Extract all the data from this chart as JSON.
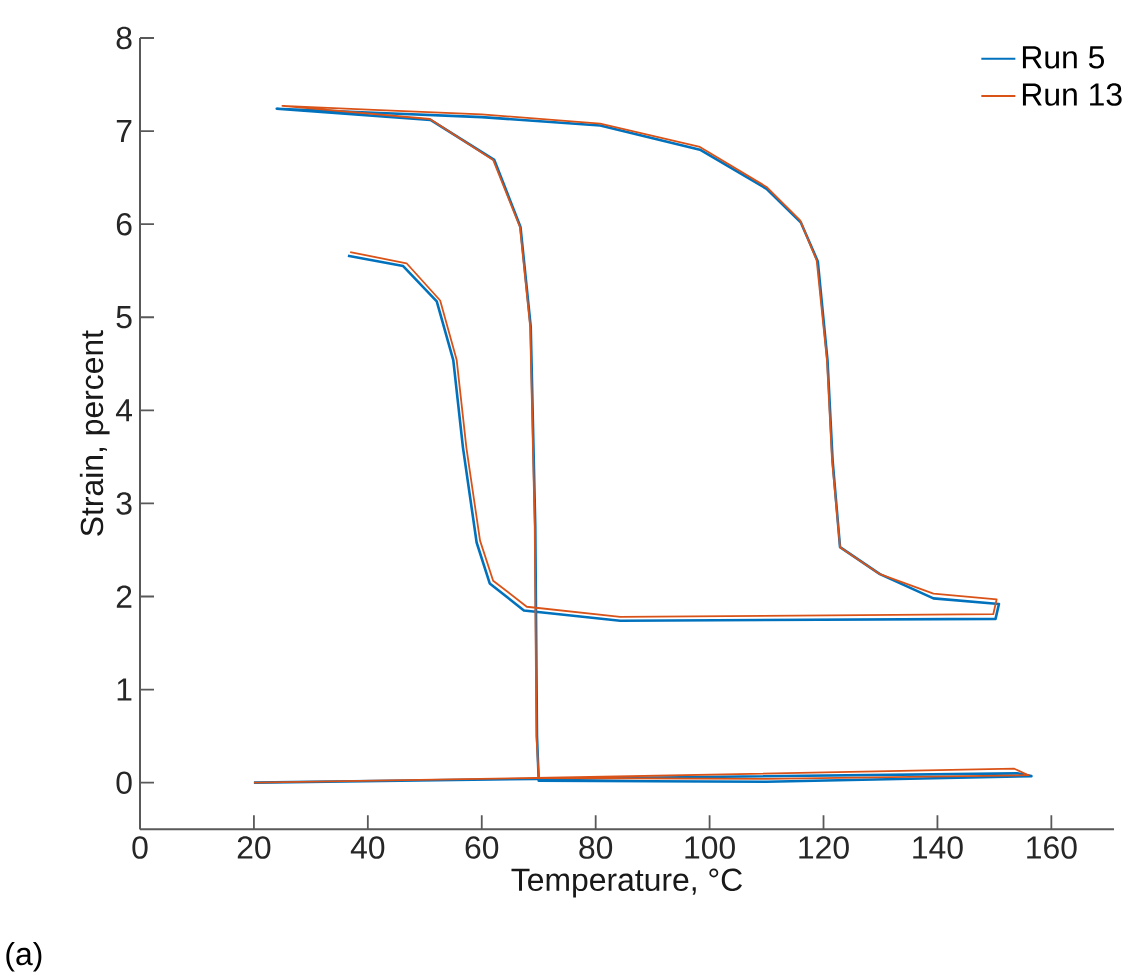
{
  "chart_data": {
    "type": "line",
    "xlabel": "Temperature, °C",
    "ylabel": "Strain, percent",
    "xlim": [
      0,
      171
    ],
    "ylim": [
      -0.5,
      8
    ],
    "xticks": [
      0,
      20,
      40,
      60,
      80,
      100,
      120,
      140,
      160
    ],
    "yticks": [
      0,
      1,
      2,
      3,
      4,
      5,
      6,
      7,
      8
    ],
    "legend": "top right",
    "annotations": [
      "(a)"
    ],
    "series": [
      {
        "name": "Run 5",
        "color": "#0072bd",
        "x": [
          20,
          69.5,
          154,
          156.5,
          110,
          70,
          69.7,
          69.4,
          68.6,
          66.8,
          62.2,
          51,
          24,
          40,
          60,
          80.8,
          98.3,
          110,
          116,
          119,
          120.7,
          121.6,
          122.9,
          129.9,
          139.3,
          150.8,
          150.2,
          84.3,
          67.4,
          61.4,
          59.1,
          56.7,
          55,
          52.1,
          46.2,
          36.5
        ],
        "values": [
          0,
          0.04,
          0.1,
          0.07,
          0.01,
          0.02,
          0.5,
          2.75,
          4.9,
          5.97,
          6.69,
          7.12,
          7.24,
          7.2,
          7.15,
          7.06,
          6.8,
          6.38,
          6.02,
          5.6,
          4.54,
          3.46,
          2.53,
          2.24,
          1.98,
          1.92,
          1.76,
          1.74,
          1.85,
          2.14,
          2.58,
          3.6,
          4.54,
          5.17,
          5.55,
          5.66
        ]
      },
      {
        "name": "Run 13",
        "color": "#d95319",
        "x": [
          20,
          69.5,
          153.5,
          156,
          110,
          70,
          69.6,
          69.3,
          68.5,
          66.7,
          62,
          50.9,
          25,
          40,
          60,
          80.8,
          98.3,
          110,
          115.9,
          118.8,
          120.6,
          121.5,
          122.9,
          129.9,
          139.3,
          150.4,
          149.8,
          84.3,
          67.9,
          62,
          59.7,
          57.3,
          55.6,
          52.7,
          46.8,
          36.9
        ],
        "values": [
          0,
          0.05,
          0.15,
          0.08,
          0.04,
          0.05,
          0.5,
          2.75,
          4.9,
          5.97,
          6.69,
          7.13,
          7.27,
          7.23,
          7.18,
          7.08,
          6.83,
          6.4,
          6.04,
          5.61,
          4.54,
          3.46,
          2.53,
          2.24,
          2.03,
          1.97,
          1.81,
          1.78,
          1.89,
          2.17,
          2.6,
          3.6,
          4.54,
          5.18,
          5.58,
          5.7
        ]
      }
    ]
  }
}
